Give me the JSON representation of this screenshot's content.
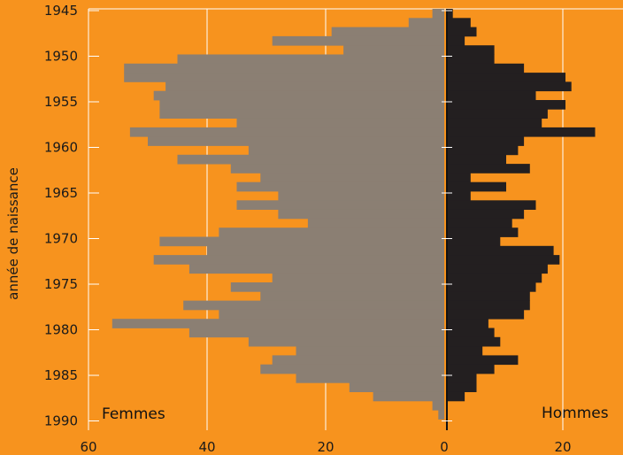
{
  "chart_data": {
    "type": "bar",
    "orientation": "horizontal",
    "layout": "population-pyramid",
    "ylabel": "année de naissance",
    "y_ticks": [
      "1945",
      "1950",
      "1955",
      "1960",
      "1965",
      "1970",
      "1975",
      "1980",
      "1985",
      "1990"
    ],
    "x_ticks": [
      "60",
      "40",
      "20",
      "0",
      "20"
    ],
    "xlim_left": [
      0,
      60
    ],
    "xlim_right": [
      0,
      30
    ],
    "grid": "vertical",
    "years": [
      1945,
      1946,
      1947,
      1948,
      1949,
      1950,
      1951,
      1952,
      1953,
      1954,
      1955,
      1956,
      1957,
      1958,
      1959,
      1960,
      1961,
      1962,
      1963,
      1964,
      1965,
      1966,
      1967,
      1968,
      1969,
      1970,
      1971,
      1972,
      1973,
      1974,
      1975,
      1976,
      1977,
      1978,
      1979,
      1980,
      1981,
      1982,
      1983,
      1984,
      1985,
      1986,
      1987,
      1988,
      1989,
      1990
    ],
    "series": [
      {
        "name": "Femmes",
        "side": "left",
        "color": "#8B7F73",
        "values": [
          2,
          6,
          19,
          29,
          17,
          45,
          54,
          54,
          47,
          49,
          48,
          48,
          35,
          53,
          50,
          33,
          45,
          36,
          31,
          35,
          28,
          35,
          28,
          23,
          38,
          48,
          40,
          49,
          43,
          29,
          36,
          31,
          44,
          38,
          56,
          43,
          33,
          25,
          29,
          31,
          25,
          16,
          12,
          2,
          1,
          0
        ]
      },
      {
        "name": "Hommes",
        "side": "right",
        "color": "#231F20",
        "values": [
          1,
          4,
          5,
          3,
          8,
          8,
          13,
          20,
          21,
          15,
          20,
          17,
          16,
          25,
          13,
          12,
          10,
          14,
          4,
          10,
          4,
          15,
          13,
          11,
          12,
          9,
          18,
          19,
          17,
          16,
          15,
          14,
          14,
          13,
          7,
          8,
          9,
          6,
          12,
          8,
          5,
          5,
          3,
          0,
          0,
          0
        ]
      }
    ]
  },
  "labels": {
    "femmes": "Femmes",
    "hommes": "Hommes",
    "ylabel": "année de naissance"
  },
  "colors": {
    "background": "#F7931E",
    "grid": "#FFFFFF",
    "femmes": "#8B7F73",
    "hommes": "#231F20"
  }
}
